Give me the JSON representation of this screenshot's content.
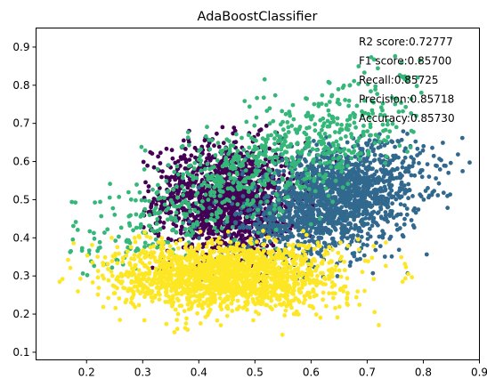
{
  "chart_data": {
    "type": "scatter",
    "title": "AdaBoostClassifier",
    "xlabel": "",
    "ylabel": "",
    "xlim": [
      0.11,
      0.9
    ],
    "ylim": [
      0.08,
      0.95
    ],
    "xticks": [
      "0.2",
      "0.3",
      "0.4",
      "0.5",
      "0.6",
      "0.7",
      "0.8",
      "0.9"
    ],
    "yticks": [
      "0.1",
      "0.2",
      "0.3",
      "0.4",
      "0.5",
      "0.6",
      "0.7",
      "0.8",
      "0.9"
    ],
    "grid": false,
    "legend": "none",
    "annotations": [
      "R2 score:0.72777",
      "F1 score:0.85700",
      "Recall:0.85725",
      "Precision:0.85718",
      "Accuracy:0.85730"
    ],
    "annotation_placement": "top-right",
    "series": [
      {
        "color": "#440154",
        "center": [
          0.45,
          0.5
        ],
        "spread": [
          0.065,
          0.075
        ],
        "count": 1400,
        "x_range": [
          0.3,
          0.66
        ],
        "y_range": [
          0.28,
          0.7
        ]
      },
      {
        "color": "#31688e",
        "center": [
          0.64,
          0.5
        ],
        "spread": [
          0.08,
          0.07
        ],
        "count": 1700,
        "x_range": [
          0.37,
          0.89
        ],
        "y_range": [
          0.24,
          0.68
        ]
      },
      {
        "color": "#35b779",
        "center": [
          0.5,
          0.58
        ],
        "spread": [
          0.12,
          0.12
        ],
        "count": 900,
        "x_range": [
          0.17,
          0.8
        ],
        "y_range": [
          0.3,
          0.9
        ]
      },
      {
        "color": "#fde725",
        "center": [
          0.45,
          0.3
        ],
        "spread": [
          0.1,
          0.045
        ],
        "count": 1800,
        "x_range": [
          0.13,
          0.83
        ],
        "y_range": [
          0.12,
          0.42
        ]
      }
    ]
  }
}
